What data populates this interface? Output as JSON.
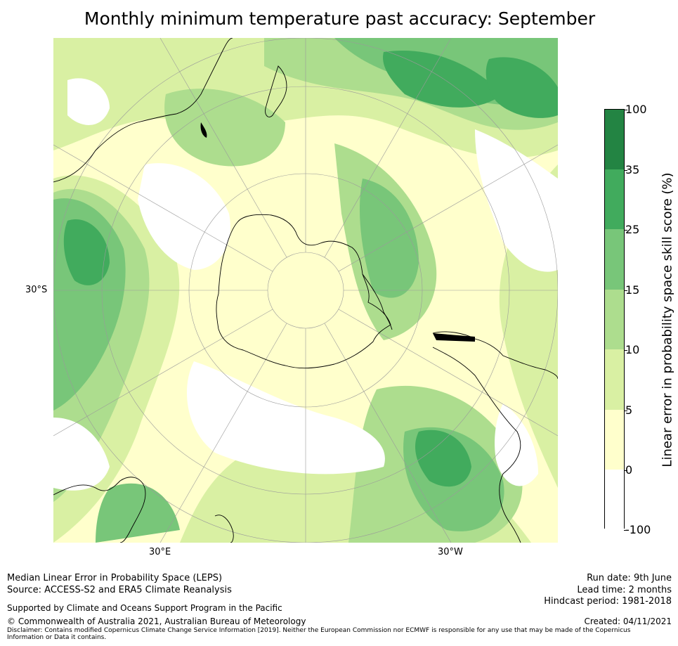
{
  "title": "Monthly minimum temperature past accuracy: September",
  "map": {
    "projection": "south-polar-stereographic",
    "lat_labels": {
      "left": "30°S",
      "bottom_left": "30°E",
      "bottom_right": "30°W"
    },
    "regions": [
      "Antarctica",
      "Australia",
      "New Zealand",
      "South America",
      "Southern Africa"
    ]
  },
  "colorbar": {
    "label": "Linear error in probability space skill score (%)",
    "ticks": [
      "100",
      "35",
      "25",
      "15",
      "10",
      "5",
      "0",
      "-100"
    ],
    "bands": [
      {
        "range": "35–100",
        "color": "#238443"
      },
      {
        "range": "25–35",
        "color": "#41ab5d"
      },
      {
        "range": "15–25",
        "color": "#78c679"
      },
      {
        "range": "10–15",
        "color": "#addd8e"
      },
      {
        "range": "5–10",
        "color": "#d9f0a3"
      },
      {
        "range": "0–5",
        "color": "#ffffcc"
      },
      {
        "range": "-100–0",
        "color": "#ffffff"
      }
    ]
  },
  "footer": {
    "line1": "Median Linear Error in Probability Space (LEPS)",
    "line2": "Source: ACCESS-S2 and ERA5 Climate Reanalysis",
    "support": "Supported by Climate and Oceans Support Program in the Pacific",
    "copyright": "© Commonwealth of Australia 2021, Australian Bureau of Meteorology",
    "disclaimer": "Disclaimer: Contains modified Copernicus Climate Change Service Information [2019]. Neither the European Commission nor ECMWF is responsible for any use that may be made of the Copernicus Information or Data it contains.",
    "run_date": "Run date: 9th June",
    "lead_time": "Lead time: 2 months",
    "hindcast": "Hindcast period: 1981-2018",
    "created": "Created: 04/11/2021"
  }
}
